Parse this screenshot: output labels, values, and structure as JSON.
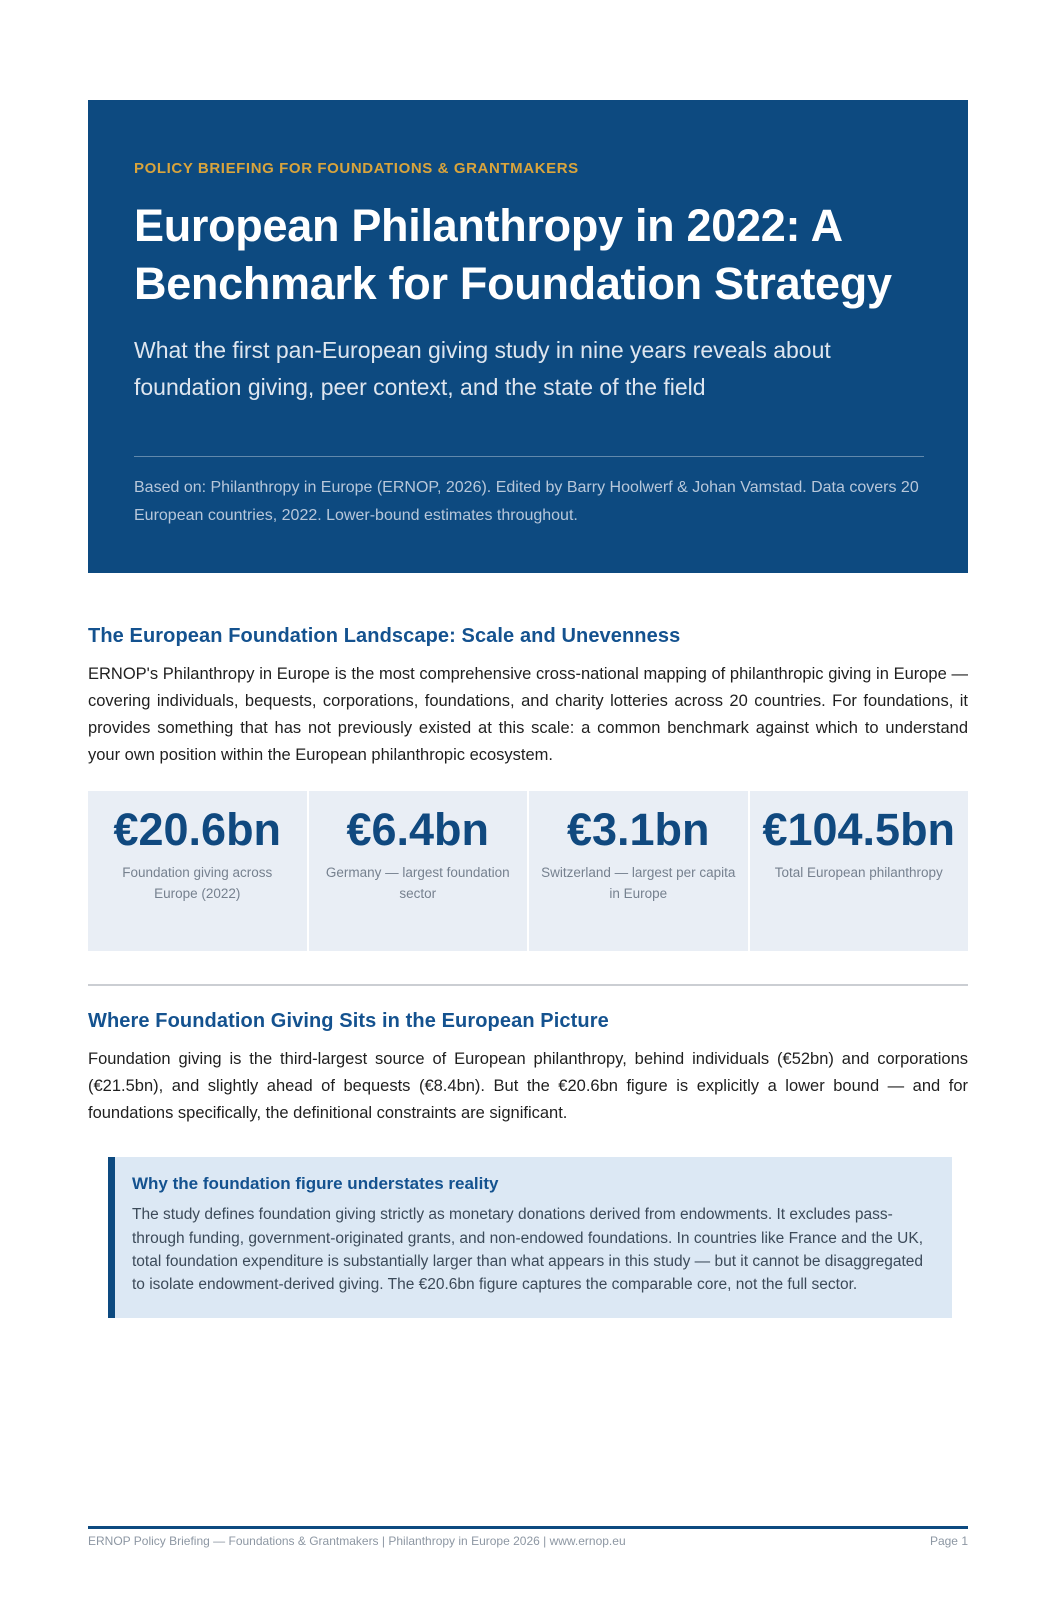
{
  "header": {
    "eyebrow": "POLICY BRIEFING FOR FOUNDATIONS & GRANTMAKERS",
    "title": "European Philanthropy in 2022: A Benchmark for Foundation Strategy",
    "subtitle": "What the first pan-European giving study in nine years reveals about foundation giving, peer context, and the state of the field",
    "attribution": "Based on: Philanthropy in Europe (ERNOP, 2026). Edited by Barry Hoolwerf & Johan Vamstad. Data covers 20 European countries, 2022. Lower-bound estimates throughout."
  },
  "sections": [
    {
      "heading": "The European Foundation Landscape: Scale and Unevenness",
      "body": "ERNOP's Philanthropy in Europe is the most comprehensive cross-national mapping of philanthropic giving in Europe — covering individuals, bequests, corporations, foundations, and charity lotteries across 20 countries. For foundations, it provides something that has not previously existed at this scale: a common benchmark against which to understand your own position within the European philanthropic ecosystem."
    },
    {
      "heading": "Where Foundation Giving Sits in the European Picture",
      "body": "Foundation giving is the third-largest source of European philanthropy, behind individuals (€52bn) and corporations (€21.5bn), and slightly ahead of bequests (€8.4bn). But the €20.6bn figure is explicitly a lower bound — and for foundations specifically, the definitional constraints are significant."
    }
  ],
  "stats": [
    {
      "value": "€20.6bn",
      "label": "Foundation giving across Europe (2022)"
    },
    {
      "value": "€6.4bn",
      "label": "Germany — largest foundation sector"
    },
    {
      "value": "€3.1bn",
      "label": "Switzerland — largest per capita in Europe"
    },
    {
      "value": "€104.5bn",
      "label": "Total European philanthropy"
    }
  ],
  "callout": {
    "heading": "Why the foundation figure understates reality",
    "body": "The study defines foundation giving strictly as monetary donations derived from endowments. It excludes pass-through funding, government-originated grants, and non-endowed foundations. In countries like France and the UK, total foundation expenditure is substantially larger than what appears in this study — but it cannot be disaggregated to isolate endowment-derived giving. The €20.6bn figure captures the comparable core, not the full sector."
  },
  "footer": {
    "left": "ERNOP Policy Briefing — Foundations & Grantmakers  |  Philanthropy in Europe 2026  |  www.ernop.eu",
    "right": "Page 1"
  },
  "colors": {
    "banner_blue": "#0d4a80",
    "accent_gold": "#d9a43c",
    "heading_blue": "#14528f",
    "stat_card_bg": "#e9eef5",
    "callout_bg": "#dce8f4",
    "muted_text": "#76818f"
  }
}
